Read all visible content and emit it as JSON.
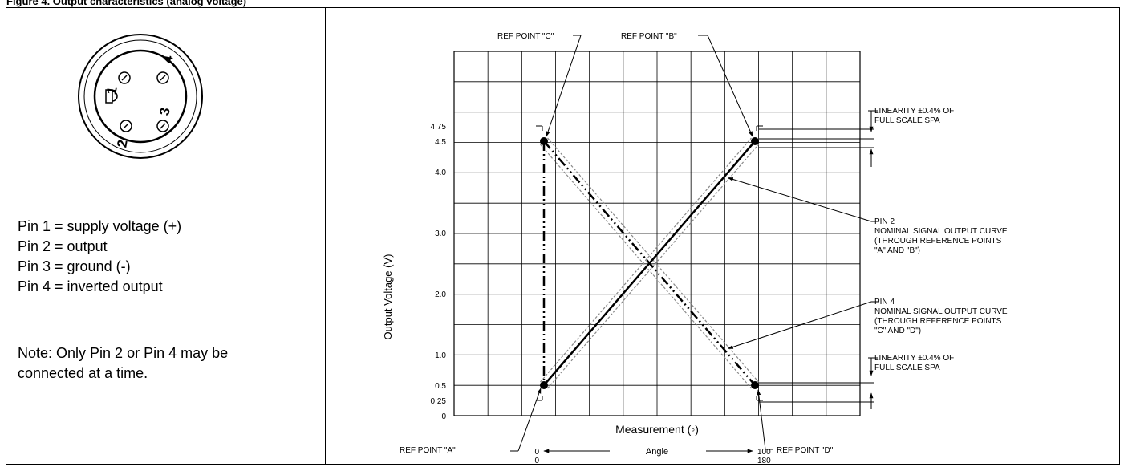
{
  "header": "Figure 4. Output characteristics (analog voltage)",
  "pin_descriptions": [
    "Pin 1 = supply voltage (+)",
    "Pin 2 = output",
    "Pin 3 = ground (-)",
    "Pin 4 = inverted output"
  ],
  "note_lines": [
    "Note: Only Pin 2 or Pin 4 may be",
    "connected at a time."
  ],
  "connector_pins": [
    "1",
    "2",
    "3",
    "4"
  ],
  "chart_data": {
    "type": "line",
    "xlabel": "Measurement (◦)",
    "ylabel": "Output Voltage (V)",
    "y_ticks": [
      "4.75",
      "4.5",
      "4.0",
      "3.0",
      "2.0",
      "1.0",
      "0.5",
      "0.25",
      "0"
    ],
    "x_start_labels": [
      "0",
      "0"
    ],
    "x_end_labels": [
      "100",
      "180"
    ],
    "angle_label": "Angle",
    "series": [
      {
        "name": "PIN 2",
        "x": [
          0,
          100
        ],
        "y": [
          0.5,
          4.5
        ]
      },
      {
        "name": "PIN 4",
        "x": [
          0,
          100
        ],
        "y": [
          4.5,
          0.5
        ]
      }
    ],
    "ref_points": [
      {
        "label": "REF POINT \"A\"",
        "x": 0,
        "y": 0.5
      },
      {
        "label": "REF POINT \"B\"",
        "x": 100,
        "y": 4.5
      },
      {
        "label": "REF POINT \"C\"",
        "x": 0,
        "y": 4.5
      },
      {
        "label": "REF POINT \"D\"",
        "x": 100,
        "y": 0.5
      }
    ],
    "annotations": {
      "linearity_top": [
        "LINEARITY ±0.4% OF",
        "FULL SCALE SPA"
      ],
      "linearity_bottom": [
        "LINEARITY ±0.4% OF",
        "FULL SCALE SPA"
      ],
      "pin2": [
        "PIN 2",
        "NOMINAL SIGNAL OUTPUT CURVE",
        "(THROUGH REFERENCE POINTS",
        "\"A\" AND \"B\")"
      ],
      "pin4": [
        "PIN 4",
        "NOMINAL SIGNAL OUTPUT CURVE",
        "(THROUGH REFERENCE POINTS",
        "\"C\" AND \"D\")"
      ]
    }
  }
}
